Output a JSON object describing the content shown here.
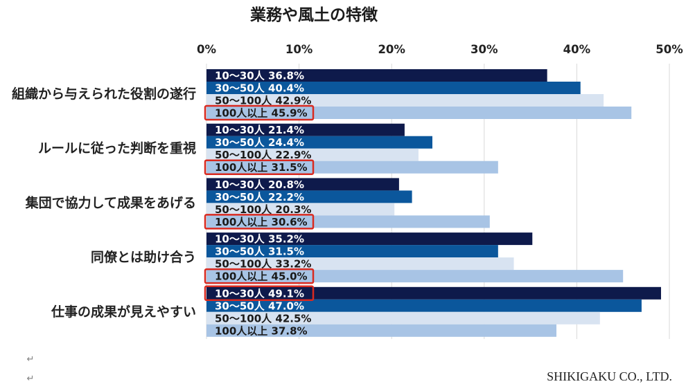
{
  "chart_data": {
    "type": "bar",
    "orientation": "horizontal",
    "title": "業務や風土の特徴",
    "categories": [
      "組織から与えられた役割の遂行",
      "ルールに従った判断を重視",
      "集団で協力して成果をあげる",
      "同僚とは助け合う",
      "仕事の成果が見えやすい"
    ],
    "series": [
      {
        "name": "10〜30人",
        "values": [
          36.8,
          21.4,
          20.8,
          35.2,
          49.1
        ],
        "color": "#0e1a4b",
        "label_color": "#ffffff"
      },
      {
        "name": "30〜50人",
        "values": [
          40.4,
          24.4,
          22.2,
          31.5,
          47.0
        ],
        "color": "#0b579c",
        "label_color": "#ffffff"
      },
      {
        "name": "50〜100人",
        "values": [
          42.9,
          22.9,
          20.3,
          33.2,
          42.5
        ],
        "color": "#d8e3f1",
        "label_color": "#1a1a1a"
      },
      {
        "name": "100人以上",
        "values": [
          45.9,
          31.5,
          30.6,
          45.0,
          37.8
        ],
        "color": "#a8c4e5",
        "label_color": "#1a1a1a"
      }
    ],
    "xlim": [
      0,
      50
    ],
    "x_ticks": [
      0,
      10,
      20,
      30,
      40,
      50
    ],
    "x_tick_labels": [
      "0%",
      "10%",
      "20%",
      "30%",
      "40%",
      "50%"
    ],
    "x_axis_position": "top",
    "grid": true,
    "gridline_color": "#d9d9d9",
    "legend": "none",
    "data_labels": "inside-start",
    "highlights": [
      {
        "category": "組織から与えられた役割の遂行",
        "series": "100人以上"
      },
      {
        "category": "ルールに従った判断を重視",
        "series": "100人以上"
      },
      {
        "category": "集団で協力して成果をあげる",
        "series": "100人以上"
      },
      {
        "category": "同僚とは助け合う",
        "series": "100人以上"
      },
      {
        "category": "仕事の成果が見えやすい",
        "series": "10〜30人"
      }
    ],
    "highlight_color": "#d92a20"
  },
  "footer": {
    "paragraph_marks": [
      "↵",
      "↵"
    ],
    "company": "SHIKIGAKU CO., LTD."
  }
}
